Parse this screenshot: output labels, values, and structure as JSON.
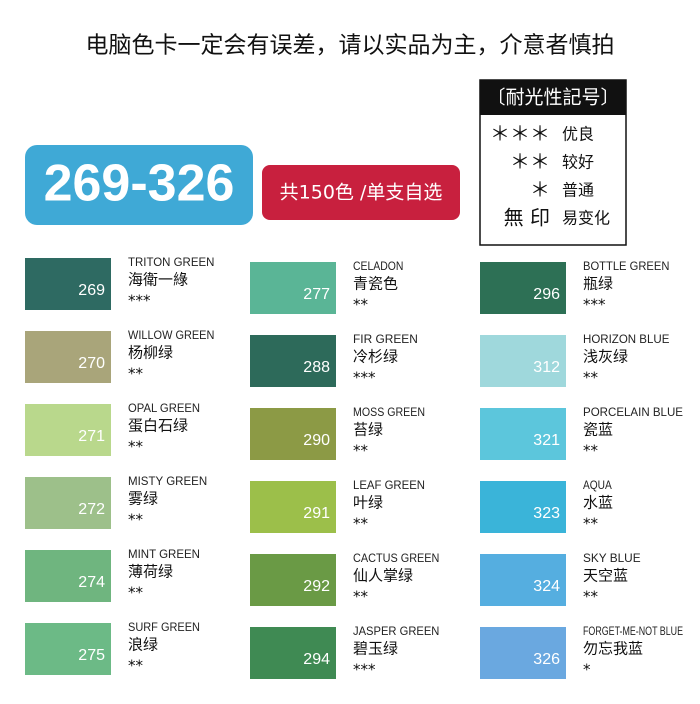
{
  "header": {
    "notice": "电脑色卡一定会有误差，请以实品为主，介意者慎拍"
  },
  "badge": {
    "range": "269-326",
    "subtitle": "共150色 /单支自选"
  },
  "legend": {
    "title": "〔耐光性記号〕",
    "rows": [
      {
        "mark": "＊＊＊",
        "label": "优良"
      },
      {
        "mark": "＊＊",
        "label": "较好"
      },
      {
        "mark": "＊",
        "label": "普通"
      },
      {
        "mark": "無 印",
        "label": "易变化"
      }
    ]
  },
  "swatches": [
    {
      "number": "269",
      "english": "TRITON GREEN",
      "chinese": "海衛一綠",
      "stars": "***",
      "color": "#2e6a62"
    },
    {
      "number": "270",
      "english": "WILLOW GREEN",
      "chinese": "杨柳绿",
      "stars": "**",
      "color": "#a9a57a"
    },
    {
      "number": "271",
      "english": "OPAL GREEN",
      "chinese": "蛋白石绿",
      "stars": "**",
      "color": "#b9d88c"
    },
    {
      "number": "272",
      "english": "MISTY GREEN",
      "chinese": "雾绿",
      "stars": "**",
      "color": "#9dc08a"
    },
    {
      "number": "274",
      "english": "MINT GREEN",
      "chinese": "薄荷绿",
      "stars": "**",
      "color": "#6fb57f"
    },
    {
      "number": "275",
      "english": "SURF GREEN",
      "chinese": "浪绿",
      "stars": "**",
      "color": "#6cba86"
    },
    {
      "number": "277",
      "english": "CELADON",
      "chinese": "青瓷色",
      "stars": "**",
      "color": "#5ab596"
    },
    {
      "number": "288",
      "english": "FIR GREEN",
      "chinese": "冷杉绿",
      "stars": "***",
      "color": "#2d6a5a"
    },
    {
      "number": "290",
      "english": "MOSS GREEN",
      "chinese": "苔绿",
      "stars": "**",
      "color": "#8c9a45"
    },
    {
      "number": "291",
      "english": "LEAF GREEN",
      "chinese": "叶绿",
      "stars": "**",
      "color": "#9cbf4a"
    },
    {
      "number": "292",
      "english": "CACTUS GREEN",
      "chinese": "仙人掌绿",
      "stars": "**",
      "color": "#6a9a45"
    },
    {
      "number": "294",
      "english": "JASPER GREEN",
      "chinese": "碧玉绿",
      "stars": "***",
      "color": "#3f8a53"
    },
    {
      "number": "296",
      "english": "BOTTLE GREEN",
      "chinese": "瓶绿",
      "stars": "***",
      "color": "#2d7055"
    },
    {
      "number": "312",
      "english": "HORIZON BLUE",
      "chinese": "浅灰绿",
      "stars": "**",
      "color": "#9fd8dc"
    },
    {
      "number": "321",
      "english": "PORCELAIN BLUE",
      "chinese": "瓷蓝",
      "stars": "**",
      "color": "#5cc6dc"
    },
    {
      "number": "323",
      "english": "AQUA",
      "chinese": "水蓝",
      "stars": "**",
      "color": "#3ab4d9"
    },
    {
      "number": "324",
      "english": "SKY BLUE",
      "chinese": "天空蓝",
      "stars": "**",
      "color": "#55aee0"
    },
    {
      "number": "326",
      "english": "FORGET-ME-NOT BLUE",
      "chinese": "勿忘我蓝",
      "stars": "*",
      "color": "#6aa8e0"
    }
  ]
}
